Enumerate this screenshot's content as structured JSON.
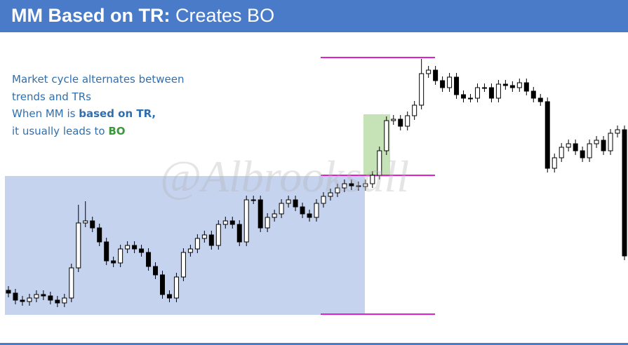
{
  "header": {
    "title_bold": "MM Based on TR:",
    "title_rest": "Creates BO"
  },
  "notes": {
    "line1": "Market cycle alternates between",
    "line2": "trends and TRs",
    "line3_start": "When MM is ",
    "line3_bold": "based on TR,",
    "line4_start": "it usually leads to ",
    "line4_bold": "BO"
  },
  "watermark": "@Albrooksall",
  "chart_data": {
    "type": "candlestick",
    "up_color": "#ffffff",
    "down_color": "#000000",
    "ylim": [
      0,
      492
    ],
    "open": [
      78,
      74,
      64,
      62,
      67,
      72,
      70,
      64,
      60,
      67,
      110,
      174,
      177,
      167,
      147,
      120,
      117,
      137,
      142,
      137,
      132,
      112,
      100,
      72,
      67,
      97,
      132,
      137,
      152,
      157,
      142,
      172,
      177,
      172,
      147,
      207,
      207,
      167,
      182,
      187,
      202,
      207,
      197,
      187,
      182,
      202,
      212,
      217,
      224,
      230,
      227,
      226,
      230,
      242,
      277,
      320,
      322,
      312,
      327,
      342,
      387,
      392,
      377,
      367,
      382,
      357,
      352,
      352,
      367,
      367,
      352,
      372,
      370,
      367,
      374,
      362,
      352,
      347,
      252,
      267,
      282,
      287,
      277,
      267,
      287,
      292,
      277,
      302,
      307
    ],
    "high": [
      84,
      80,
      70,
      73,
      78,
      78,
      76,
      70,
      73,
      116,
      200,
      205,
      183,
      173,
      153,
      126,
      143,
      148,
      148,
      143,
      138,
      118,
      106,
      78,
      103,
      138,
      143,
      158,
      163,
      163,
      178,
      183,
      183,
      178,
      213,
      213,
      213,
      188,
      193,
      208,
      213,
      213,
      203,
      193,
      208,
      218,
      223,
      230,
      236,
      236,
      233,
      236,
      248,
      283,
      326,
      328,
      328,
      333,
      348,
      408,
      398,
      398,
      383,
      388,
      388,
      363,
      358,
      373,
      373,
      373,
      378,
      378,
      376,
      380,
      380,
      368,
      358,
      353,
      273,
      288,
      293,
      293,
      283,
      293,
      298,
      298,
      308,
      313,
      313
    ],
    "low": [
      68,
      58,
      56,
      56,
      61,
      64,
      58,
      54,
      54,
      61,
      104,
      168,
      161,
      141,
      114,
      111,
      111,
      131,
      131,
      126,
      106,
      94,
      66,
      61,
      61,
      91,
      126,
      131,
      146,
      136,
      136,
      166,
      166,
      141,
      141,
      201,
      161,
      161,
      176,
      181,
      196,
      191,
      181,
      176,
      176,
      196,
      206,
      211,
      218,
      221,
      220,
      220,
      224,
      236,
      271,
      314,
      306,
      306,
      321,
      336,
      381,
      371,
      361,
      361,
      351,
      346,
      346,
      346,
      361,
      346,
      346,
      364,
      361,
      361,
      356,
      346,
      341,
      246,
      246,
      261,
      276,
      271,
      261,
      261,
      281,
      271,
      271,
      296,
      121
    ],
    "close": [
      74,
      64,
      62,
      67,
      72,
      70,
      64,
      60,
      67,
      110,
      174,
      177,
      167,
      147,
      120,
      117,
      137,
      142,
      137,
      132,
      112,
      100,
      72,
      67,
      97,
      132,
      137,
      152,
      157,
      142,
      172,
      177,
      172,
      147,
      207,
      207,
      167,
      182,
      187,
      202,
      207,
      197,
      187,
      182,
      202,
      212,
      217,
      224,
      230,
      227,
      226,
      230,
      242,
      277,
      320,
      322,
      312,
      327,
      342,
      387,
      392,
      377,
      367,
      382,
      357,
      352,
      352,
      367,
      367,
      352,
      372,
      370,
      367,
      374,
      362,
      352,
      347,
      252,
      267,
      282,
      287,
      277,
      267,
      287,
      292,
      277,
      302,
      307,
      127
    ]
  }
}
